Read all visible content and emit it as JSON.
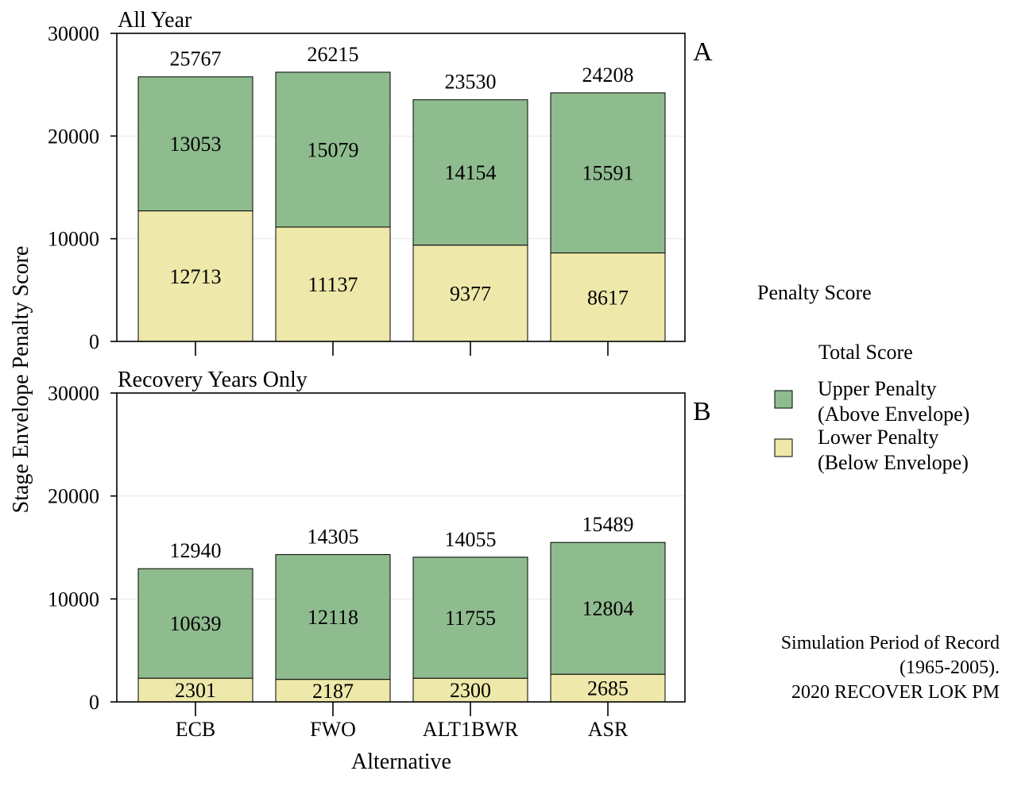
{
  "chart_data": [
    {
      "type": "bar",
      "stacked": true,
      "title": "All Year",
      "panel_label": "A",
      "categories": [
        "ECB",
        "FWO",
        "ALT1BWR",
        "ASR"
      ],
      "series": [
        {
          "name": "Lower Penalty (Below Envelope)",
          "values": [
            12713,
            11137,
            9377,
            8617
          ]
        },
        {
          "name": "Upper Penalty (Above Envelope)",
          "values": [
            13053,
            15079,
            14154,
            15591
          ]
        }
      ],
      "totals": [
        25767,
        26215,
        23530,
        24208
      ],
      "ylim": [
        0,
        30000
      ],
      "yticks": [
        0,
        10000,
        20000,
        30000
      ],
      "grid": true
    },
    {
      "type": "bar",
      "stacked": true,
      "title": "Recovery Years Only",
      "panel_label": "B",
      "categories": [
        "ECB",
        "FWO",
        "ALT1BWR",
        "ASR"
      ],
      "series": [
        {
          "name": "Lower Penalty (Below Envelope)",
          "values": [
            2301,
            2187,
            2300,
            2685
          ]
        },
        {
          "name": "Upper Penalty (Above Envelope)",
          "values": [
            10639,
            12118,
            11755,
            12804
          ]
        }
      ],
      "totals": [
        12940,
        14305,
        14055,
        15489
      ],
      "ylim": [
        0,
        30000
      ],
      "yticks": [
        0,
        10000,
        20000,
        30000
      ],
      "grid": true
    }
  ],
  "axes": {
    "xlabel": "Alternative",
    "ylabel": "Stage Envelope Penalty Score"
  },
  "legend": {
    "title": "Penalty Score",
    "subtitle": "Total Score",
    "position": "right",
    "items": [
      {
        "line1": "Upper Penalty",
        "line2": "(Above Envelope)",
        "color": "#8fbc8f"
      },
      {
        "line1": "Lower Penalty",
        "line2": "(Below Envelope)",
        "color": "#eee8aa"
      }
    ]
  },
  "note": {
    "line1": "Simulation Period of Record",
    "line2": "(1965-2005).",
    "line3": "2020 RECOVER LOK PM"
  }
}
